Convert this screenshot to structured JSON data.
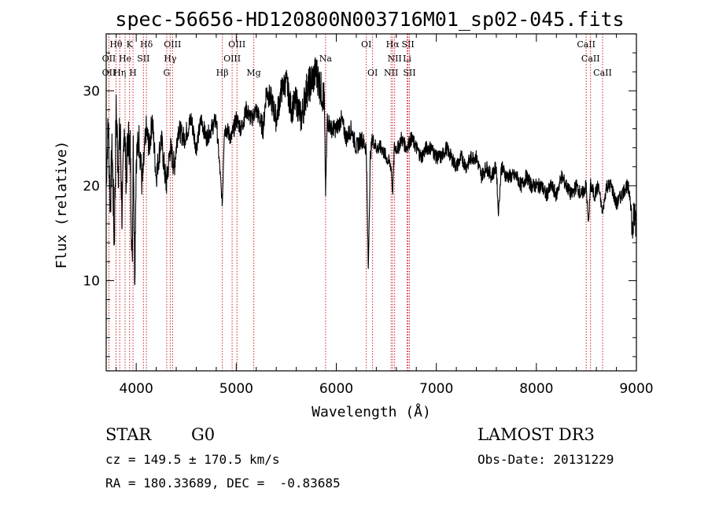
{
  "chart_data": {
    "type": "line",
    "title": "spec-56656-HD120800N003716M01_sp02-045.fits",
    "xlabel": "Wavelength (Å)",
    "ylabel": "Flux (relative)",
    "xlim": [
      3700,
      9000
    ],
    "ylim": [
      0.5,
      36
    ],
    "x_ticks": [
      4000,
      5000,
      6000,
      7000,
      8000,
      9000
    ],
    "y_ticks": [
      10,
      20,
      30
    ],
    "line_color": "#000000",
    "marker_color": "#cc2222",
    "series": [
      {
        "name": "flux",
        "x": [
          3700,
          3720,
          3740,
          3760,
          3780,
          3800,
          3820,
          3840,
          3860,
          3880,
          3900,
          3920,
          3940,
          3960,
          3970,
          3985,
          4000,
          4030,
          4060,
          4100,
          4130,
          4160,
          4200,
          4250,
          4300,
          4340,
          4380,
          4420,
          4480,
          4550,
          4600,
          4650,
          4700,
          4750,
          4800,
          4861,
          4880,
          4900,
          4950,
          5000,
          5050,
          5100,
          5150,
          5200,
          5270,
          5300,
          5350,
          5400,
          5450,
          5500,
          5550,
          5600,
          5650,
          5700,
          5750,
          5800,
          5850,
          5880,
          5893,
          5910,
          5950,
          6000,
          6050,
          6100,
          6150,
          6200,
          6250,
          6300,
          6320,
          6340,
          6360,
          6400,
          6450,
          6500,
          6550,
          6563,
          6580,
          6620,
          6650,
          6700,
          6750,
          6800,
          6850,
          6900,
          6950,
          7000,
          7050,
          7100,
          7150,
          7200,
          7250,
          7300,
          7350,
          7400,
          7450,
          7500,
          7550,
          7600,
          7620,
          7650,
          7700,
          7750,
          7800,
          7850,
          7900,
          7950,
          8000,
          8050,
          8100,
          8150,
          8200,
          8250,
          8300,
          8350,
          8400,
          8450,
          8498,
          8520,
          8542,
          8580,
          8620,
          8662,
          8700,
          8750,
          8800,
          8850,
          8900,
          8940,
          8960,
          8980,
          9000
        ],
        "values": [
          20,
          27,
          18,
          24,
          14,
          28,
          22,
          26,
          16,
          27,
          21,
          25,
          24,
          11,
          26,
          10,
          23,
          25,
          20,
          26,
          24,
          27,
          21,
          25,
          20,
          24,
          22,
          26,
          25,
          27,
          24,
          27,
          25,
          26,
          27,
          18,
          26,
          26,
          25,
          27,
          26,
          28,
          27,
          28,
          26,
          30,
          29,
          27,
          30,
          31,
          28,
          29,
          27,
          30,
          31,
          32,
          30,
          29,
          19,
          27,
          26,
          26,
          27,
          25,
          26,
          24,
          25,
          24,
          11,
          23,
          25,
          24,
          24,
          23,
          22,
          19,
          24,
          24,
          25,
          24,
          25,
          24,
          23,
          24,
          24,
          23,
          23,
          24,
          23,
          22,
          23,
          22,
          23,
          23,
          21,
          22,
          21,
          22,
          17,
          22,
          21,
          21,
          21,
          20,
          21,
          20,
          20,
          20,
          19,
          20,
          19,
          21,
          20,
          19,
          20,
          19,
          20,
          16,
          20,
          19,
          20,
          17,
          20,
          20,
          18,
          19,
          20,
          19,
          15,
          17,
          16
        ],
        "jitter": [
          1.5,
          2.5,
          3,
          2.5,
          3.5,
          3,
          3,
          3,
          3,
          2.5,
          2.5,
          2.5,
          2.5,
          2.5,
          2,
          2,
          2,
          2,
          2,
          1.5,
          1.5,
          1.5,
          1.5,
          1.5,
          1.5,
          1.5,
          1.5,
          1.2,
          1.2,
          1.2,
          1,
          1,
          1,
          1,
          1,
          0.5,
          1,
          1,
          1,
          1,
          1,
          1,
          1,
          1,
          1.2,
          1.3,
          1.4,
          1.5,
          1.5,
          1.5,
          1.6,
          1.6,
          1.8,
          2,
          2,
          2,
          2,
          2,
          0.5,
          1.2,
          1,
          1,
          1,
          1,
          1,
          1,
          1,
          1,
          0.3,
          0.8,
          0.8,
          0.8,
          0.8,
          0.8,
          0.8,
          0.4,
          0.8,
          0.8,
          0.8,
          0.8,
          0.8,
          0.8,
          0.8,
          0.8,
          0.8,
          0.8,
          0.8,
          0.8,
          0.8,
          0.8,
          0.8,
          0.8,
          0.8,
          0.8,
          0.8,
          0.8,
          0.8,
          0.8,
          0.4,
          0.8,
          0.8,
          0.8,
          0.8,
          0.8,
          0.8,
          0.8,
          0.8,
          0.8,
          0.8,
          0.8,
          0.8,
          0.8,
          0.8,
          0.8,
          0.8,
          0.8,
          0.8,
          0.4,
          0.8,
          0.8,
          0.8,
          0.4,
          0.8,
          0.8,
          0.8,
          0.8,
          0.8,
          1,
          2,
          2,
          2
        ]
      }
    ],
    "line_markers": [
      {
        "label": "Hθ",
        "x": 3798,
        "row": 0
      },
      {
        "label": "K",
        "x": 3934,
        "row": 0
      },
      {
        "label": "Hδ",
        "x": 4102,
        "row": 0
      },
      {
        "label": "OIII",
        "x": 4363,
        "row": 0
      },
      {
        "label": "OIII",
        "x": 5007,
        "row": 0
      },
      {
        "label": "OI",
        "x": 6300,
        "row": 0
      },
      {
        "label": "Hα",
        "x": 6563,
        "row": 0
      },
      {
        "label": "SII",
        "x": 6717,
        "row": 0
      },
      {
        "label": "CaII",
        "x": 8498,
        "row": 0
      },
      {
        "label": "OII",
        "x": 3727,
        "row": 1
      },
      {
        "label": "He",
        "x": 3889,
        "row": 1
      },
      {
        "label": "SII",
        "x": 4072,
        "row": 1
      },
      {
        "label": "Hγ",
        "x": 4340,
        "row": 1
      },
      {
        "label": "OIII",
        "x": 4959,
        "row": 1
      },
      {
        "label": "NII",
        "x": 6583,
        "row": 1
      },
      {
        "label": "Li",
        "x": 6708,
        "row": 1
      },
      {
        "label": "CaII",
        "x": 8542,
        "row": 1
      },
      {
        "label": "OII",
        "x": 3727,
        "row": 2
      },
      {
        "label": "Hη",
        "x": 3835,
        "row": 2
      },
      {
        "label": "H",
        "x": 3968,
        "row": 2
      },
      {
        "label": "G",
        "x": 4305,
        "row": 2
      },
      {
        "label": "Hβ",
        "x": 4861,
        "row": 2
      },
      {
        "label": "Mg",
        "x": 5175,
        "row": 2
      },
      {
        "label": "Na",
        "x": 5893,
        "row": 1
      },
      {
        "label": "OI",
        "x": 6363,
        "row": 2
      },
      {
        "label": "NII",
        "x": 6548,
        "row": 2
      },
      {
        "label": "SII",
        "x": 6731,
        "row": 2
      },
      {
        "label": "CaII",
        "x": 8662,
        "row": 2
      }
    ]
  },
  "info": {
    "object_class": "STAR",
    "subclass": "G0",
    "survey": "LAMOST DR3",
    "cz": "cz = 149.5 ± 170.5 km/s",
    "obs_date": "Obs-Date: 20131229",
    "radec": "RA = 180.33689, DEC =  -0.83685"
  }
}
